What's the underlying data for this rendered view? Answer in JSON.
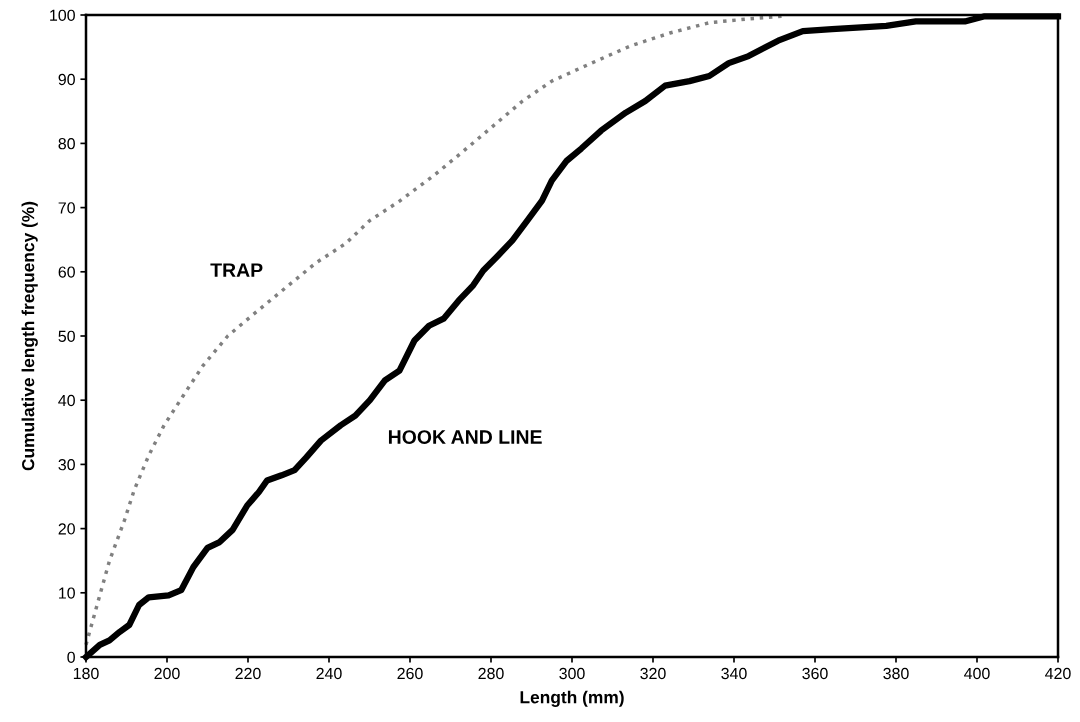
{
  "chart_data": {
    "type": "line",
    "xlabel": "Length (mm)",
    "ylabel": "Cumulative length frequency (%)",
    "xlim": [
      180,
      420
    ],
    "xticks": [
      180,
      200,
      220,
      240,
      260,
      280,
      300,
      320,
      340,
      360,
      380,
      400,
      420
    ],
    "ylim": [
      0,
      100
    ],
    "yticks": [
      0,
      10,
      20,
      30,
      40,
      50,
      60,
      70,
      80,
      90,
      100
    ],
    "grid": false,
    "legend": false,
    "marker": "none",
    "series": [
      {
        "name": "TRAP",
        "color": "#808080",
        "line_style": "dotted",
        "x": [
          180,
          183.4,
          185.8,
          189.5,
          191.9,
          195.5,
          199.2,
          204,
          208.9,
          215,
          221,
          228.3,
          236.8,
          244.1,
          250.1,
          257.4,
          265.9,
          273.2,
          280.5,
          287.8,
          295,
          304.8,
          314.5,
          324.2,
          333.9,
          343.6,
          352
        ],
        "values": [
          1.9,
          9.6,
          15,
          21.3,
          26,
          31.4,
          36,
          40.7,
          45.4,
          50,
          53.2,
          57,
          61.4,
          64.4,
          68,
          71,
          75,
          78.8,
          82.7,
          86.6,
          89.7,
          92.5,
          95.2,
          97.2,
          98.8,
          99.4,
          99.8
        ]
      },
      {
        "name": "HOOK AND LINE",
        "color": "#000000",
        "line_style": "solid",
        "x": [
          180,
          183.4,
          185.8,
          188.3,
          190.7,
          193.1,
          195.5,
          200.4,
          203.5,
          206.5,
          210,
          213,
          216.2,
          219.8,
          222.7,
          224.7,
          228.3,
          231.5,
          234.4,
          238,
          242.9,
          246.5,
          250.1,
          253.8,
          257.4,
          261.1,
          264.7,
          268.3,
          272,
          275.6,
          278.1,
          281.7,
          285.3,
          289,
          292.6,
          295,
          298.7,
          302.3,
          307.2,
          313.3,
          318.1,
          323,
          329,
          333.9,
          338.7,
          343.6,
          350.9,
          357,
          364.2,
          377.6,
          384.9,
          397,
          401.9,
          420
        ],
        "values": [
          0,
          1.9,
          2.6,
          3.9,
          5,
          8.1,
          9.3,
          9.6,
          10.4,
          14,
          17,
          17.9,
          19.8,
          23.6,
          25.7,
          27.5,
          28.3,
          29.1,
          31.1,
          33.7,
          36.1,
          37.6,
          40,
          43.1,
          44.6,
          49.3,
          51.6,
          52.7,
          55.5,
          57.9,
          60.2,
          62.5,
          64.9,
          68,
          71.1,
          74.2,
          77.3,
          79.2,
          82,
          84.8,
          86.6,
          89,
          89.7,
          90.5,
          92.5,
          93.6,
          96,
          97.5,
          97.8,
          98.3,
          99,
          99,
          99.8,
          99.8
        ]
      }
    ]
  }
}
